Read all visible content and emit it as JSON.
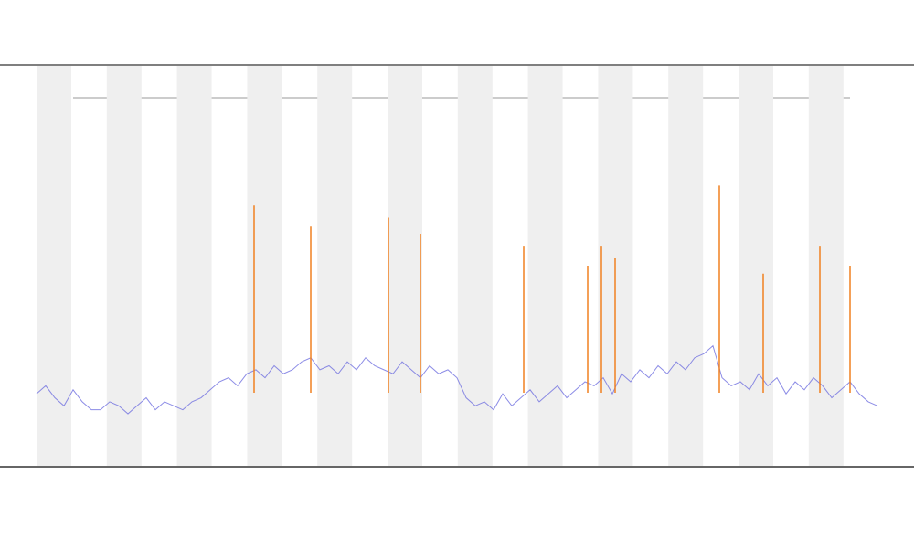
{
  "chart_data": {
    "type": "line",
    "x": [
      0,
      1,
      2,
      3,
      4,
      5,
      6,
      7,
      8,
      9,
      10,
      11,
      12,
      13,
      14,
      15,
      16,
      17,
      18,
      19,
      20,
      21,
      22,
      23,
      24,
      25,
      26,
      27,
      28,
      29,
      30,
      31,
      32,
      33,
      34,
      35,
      36,
      37,
      38,
      39,
      40,
      41,
      42,
      43,
      44,
      45,
      46,
      47,
      48,
      49,
      50,
      51,
      52,
      53,
      54,
      55,
      56,
      57,
      58,
      59,
      60,
      61,
      62,
      63,
      64,
      65,
      66,
      67,
      68,
      69,
      70,
      71,
      72,
      73,
      74,
      75,
      76,
      77,
      78,
      79,
      80,
      81,
      82,
      83,
      84,
      85,
      86,
      87,
      88,
      89,
      90,
      91,
      92
    ],
    "series": [
      {
        "color": "#6f6fe0",
        "values": [
          18,
          20,
          17,
          15,
          19,
          16,
          14,
          14,
          16,
          15,
          13,
          15,
          17,
          14,
          16,
          15,
          14,
          16,
          17,
          19,
          21,
          22,
          20,
          23,
          24,
          22,
          25,
          23,
          24,
          26,
          27,
          24,
          25,
          23,
          26,
          24,
          27,
          25,
          24,
          23,
          26,
          24,
          22,
          25,
          23,
          24,
          22,
          17,
          15,
          16,
          14,
          18,
          15,
          17,
          19,
          16,
          18,
          20,
          17,
          19,
          21,
          20,
          22,
          18,
          23,
          21,
          24,
          22,
          25,
          23,
          26,
          24,
          27,
          28,
          30,
          22,
          20,
          21,
          19,
          23,
          20,
          22,
          18,
          21,
          19,
          22,
          20,
          17,
          19,
          21,
          18,
          16,
          15
        ]
      }
    ],
    "spikes": {
      "color": "#f08020",
      "x": [
        23.8,
        30,
        38.5,
        42,
        53.3,
        60.3,
        61.8,
        63.3,
        74.7,
        79.5,
        85.7,
        89
      ],
      "values": [
        65,
        60,
        62,
        58,
        55,
        50,
        55,
        52,
        70,
        48,
        55,
        50
      ]
    },
    "xlim": [
      0,
      92
    ],
    "ylim": [
      0,
      100
    ],
    "shading": true
  }
}
